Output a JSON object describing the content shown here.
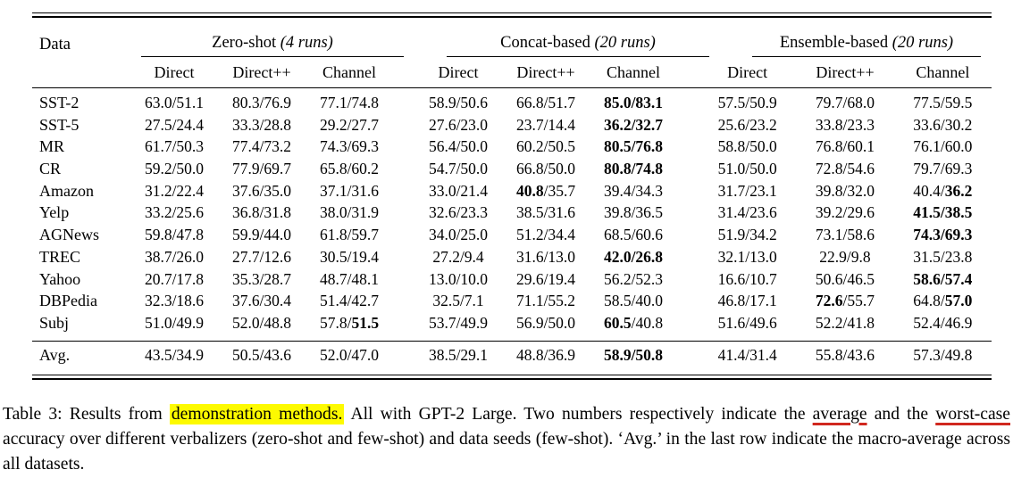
{
  "table": {
    "id_label": "Data",
    "groups": [
      {
        "label": "Zero-shot ",
        "runs_label": "(4 runs)",
        "columns": [
          "Direct",
          "Direct++",
          "Channel"
        ]
      },
      {
        "label": "Concat-based ",
        "runs_label": "(20 runs)",
        "columns": [
          "Direct",
          "Direct++",
          "Channel"
        ]
      },
      {
        "label": "Ensemble-based ",
        "runs_label": "(20 runs)",
        "columns": [
          "Direct",
          "Direct++",
          "Channel"
        ]
      }
    ],
    "rows": [
      {
        "label": "SST-2",
        "values": [
          "63.0/51.1",
          "80.3/76.9",
          "77.1/74.8",
          "58.9/50.6",
          "66.8/51.7",
          "85.0/83.1",
          "57.5/50.9",
          "79.7/68.0",
          "77.5/59.5"
        ],
        "bold": [
          "",
          "",
          "",
          "",
          "",
          "both",
          "",
          "",
          ""
        ]
      },
      {
        "label": "SST-5",
        "values": [
          "27.5/24.4",
          "33.3/28.8",
          "29.2/27.7",
          "27.6/23.0",
          "23.7/14.4",
          "36.2/32.7",
          "25.6/23.2",
          "33.8/23.3",
          "33.6/30.2"
        ],
        "bold": [
          "",
          "",
          "",
          "",
          "",
          "both",
          "",
          "",
          ""
        ]
      },
      {
        "label": "MR",
        "values": [
          "61.7/50.3",
          "77.4/73.2",
          "74.3/69.3",
          "56.4/50.0",
          "60.2/50.5",
          "80.5/76.8",
          "58.8/50.0",
          "76.8/60.1",
          "76.1/60.0"
        ],
        "bold": [
          "",
          "",
          "",
          "",
          "",
          "both",
          "",
          "",
          ""
        ]
      },
      {
        "label": "CR",
        "values": [
          "59.2/50.0",
          "77.9/69.7",
          "65.8/60.2",
          "54.7/50.0",
          "66.8/50.0",
          "80.8/74.8",
          "51.0/50.0",
          "72.8/54.6",
          "79.7/69.3"
        ],
        "bold": [
          "",
          "",
          "",
          "",
          "",
          "both",
          "",
          "",
          ""
        ]
      },
      {
        "label": "Amazon",
        "values": [
          "31.2/22.4",
          "37.6/35.0",
          "37.1/31.6",
          "33.0/21.4",
          "40.8/35.7",
          "39.4/34.3",
          "31.7/23.1",
          "39.8/32.0",
          "40.4/36.2"
        ],
        "bold": [
          "",
          "",
          "",
          "",
          "first",
          "",
          "",
          "",
          "second"
        ]
      },
      {
        "label": "Yelp",
        "values": [
          "33.2/25.6",
          "36.8/31.8",
          "38.0/31.9",
          "32.6/23.3",
          "38.5/31.6",
          "39.8/36.5",
          "31.4/23.6",
          "39.2/29.6",
          "41.5/38.5"
        ],
        "bold": [
          "",
          "",
          "",
          "",
          "",
          "",
          "",
          "",
          "both"
        ]
      },
      {
        "label": "AGNews",
        "values": [
          "59.8/47.8",
          "59.9/44.0",
          "61.8/59.7",
          "34.0/25.0",
          "51.2/34.4",
          "68.5/60.6",
          "51.9/34.2",
          "73.1/58.6",
          "74.3/69.3"
        ],
        "bold": [
          "",
          "",
          "",
          "",
          "",
          "",
          "",
          "",
          "both"
        ]
      },
      {
        "label": "TREC",
        "values": [
          "38.7/26.0",
          "27.7/12.6",
          "30.5/19.4",
          "27.2/9.4",
          "31.6/13.0",
          "42.0/26.8",
          "32.1/13.0",
          "22.9/9.8",
          "31.5/23.8"
        ],
        "bold": [
          "",
          "",
          "",
          "",
          "",
          "both",
          "",
          "",
          ""
        ]
      },
      {
        "label": "Yahoo",
        "values": [
          "20.7/17.8",
          "35.3/28.7",
          "48.7/48.1",
          "13.0/10.0",
          "29.6/19.4",
          "56.2/52.3",
          "16.6/10.7",
          "50.6/46.5",
          "58.6/57.4"
        ],
        "bold": [
          "",
          "",
          "",
          "",
          "",
          "",
          "",
          "",
          "both"
        ]
      },
      {
        "label": "DBPedia",
        "values": [
          "32.3/18.6",
          "37.6/30.4",
          "51.4/42.7",
          "32.5/7.1",
          "71.1/55.2",
          "58.5/40.0",
          "46.8/17.1",
          "72.6/55.7",
          "64.8/57.0"
        ],
        "bold": [
          "",
          "",
          "",
          "",
          "",
          "",
          "",
          "first",
          "second"
        ]
      },
      {
        "label": "Subj",
        "values": [
          "51.0/49.9",
          "52.0/48.8",
          "57.8/51.5",
          "53.7/49.9",
          "56.9/50.0",
          "60.5/40.8",
          "51.6/49.6",
          "52.2/41.8",
          "52.4/46.9"
        ],
        "bold": [
          "",
          "",
          "second",
          "",
          "",
          "first",
          "",
          "",
          ""
        ]
      }
    ],
    "avg_row": {
      "label": "Avg.",
      "values": [
        "43.5/34.9",
        "50.5/43.6",
        "52.0/47.0",
        "38.5/29.1",
        "48.8/36.9",
        "58.9/50.8",
        "41.4/31.4",
        "55.8/43.6",
        "57.3/49.8"
      ],
      "bold": [
        "",
        "",
        "",
        "",
        "",
        "both",
        "",
        "",
        ""
      ]
    }
  },
  "caption": {
    "segments": [
      {
        "text": "Table 3:  Results from ",
        "style": "normal"
      },
      {
        "text": "demonstration methods.",
        "style": "highlight"
      },
      {
        "text": "  All with GPT-2 Large.  Two numbers respectively indicate the ",
        "style": "normal"
      },
      {
        "text": "average",
        "style": "redline"
      },
      {
        "text": " and the ",
        "style": "normal"
      },
      {
        "text": "worst-case",
        "style": "redline"
      },
      {
        "text": " accuracy over different verbalizers (zero-shot and few-shot) and data seeds (few-shot). ‘Avg.’ in the last row indicate the macro-average across all datasets.",
        "style": "normal"
      }
    ]
  },
  "colors": {
    "highlight": "#fdfa00",
    "annotation_red": "#d0281e",
    "text": "#000000"
  }
}
